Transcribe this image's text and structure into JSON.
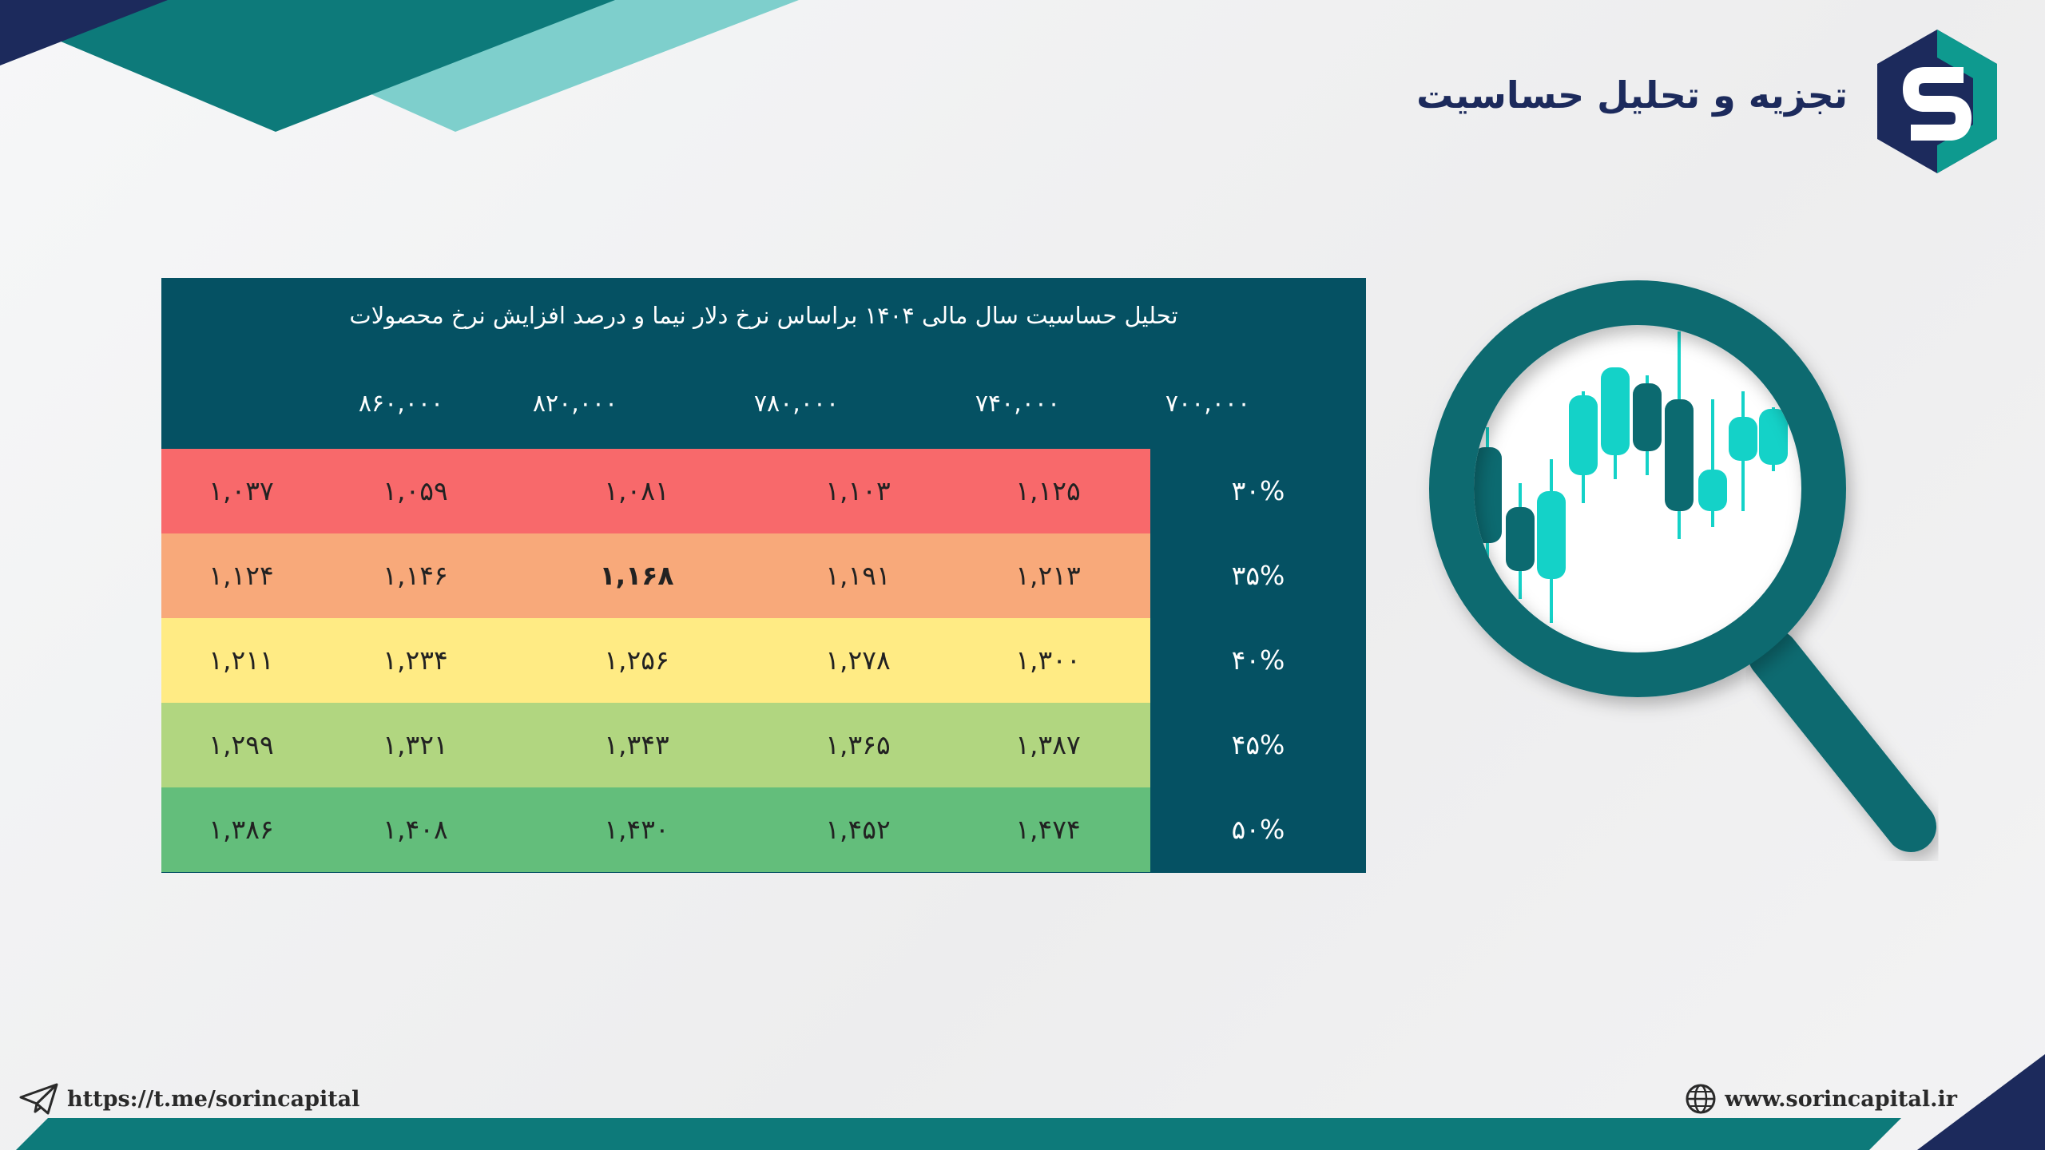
{
  "header": {
    "title": "تجزیه و تحلیل حساسیت",
    "logo_icon": "sorin-capital-logo"
  },
  "table": {
    "title": "تحلیل حساسیت سال مالی ۱۴۰۴ براساس نرخ دلار نیما و درصد افزایش نرخ محصولات",
    "columns": [
      "۸۶۰,۰۰۰",
      "۸۲۰,۰۰۰",
      "۷۸۰,۰۰۰",
      "۷۴۰,۰۰۰",
      "۷۰۰,۰۰۰"
    ],
    "rows": [
      {
        "label": "۳۰%",
        "color": "#f8696b",
        "values": [
          "۱,۰۳۷",
          "۱,۰۵۹",
          "۱,۰۸۱",
          "۱,۱۰۳",
          "۱,۱۲۵"
        ]
      },
      {
        "label": "۳۵%",
        "color": "#f8a97a",
        "values": [
          "۱,۱۲۴",
          "۱,۱۴۶",
          "۱,۱۶۸",
          "۱,۱۹۱",
          "۱,۲۱۳"
        ]
      },
      {
        "label": "۴۰%",
        "color": "#ffeb84",
        "values": [
          "۱,۲۱۱",
          "۱,۲۳۴",
          "۱,۲۵۶",
          "۱,۲۷۸",
          "۱,۳۰۰"
        ]
      },
      {
        "label": "۴۵%",
        "color": "#b1d680",
        "values": [
          "۱,۲۹۹",
          "۱,۳۲۱",
          "۱,۳۴۳",
          "۱,۳۶۵",
          "۱,۳۸۷"
        ]
      },
      {
        "label": "۵۰%",
        "color": "#63be7b",
        "values": [
          "۱,۳۸۶",
          "۱,۴۰۸",
          "۱,۴۳۰",
          "۱,۴۵۲",
          "۱,۴۷۴"
        ]
      }
    ],
    "highlight_value": "۱,۱۶۸"
  },
  "footer": {
    "telegram_link": "https://t.me/sorincapital",
    "telegram_icon": "paper-plane-icon",
    "website": "www.sorincapital.ir",
    "website_icon": "globe-icon"
  },
  "colors": {
    "dark_teal": "#055163",
    "teal": "#0d8a8a",
    "light_teal": "#7ecfcc",
    "navy": "#1c2a5c",
    "candle": "#14d2c8"
  }
}
